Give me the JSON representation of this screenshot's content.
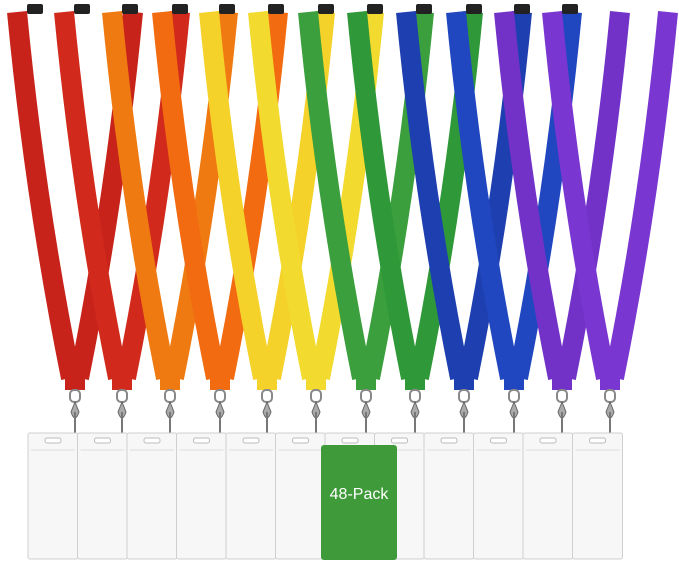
{
  "badge_label": "48-Pack"
}
